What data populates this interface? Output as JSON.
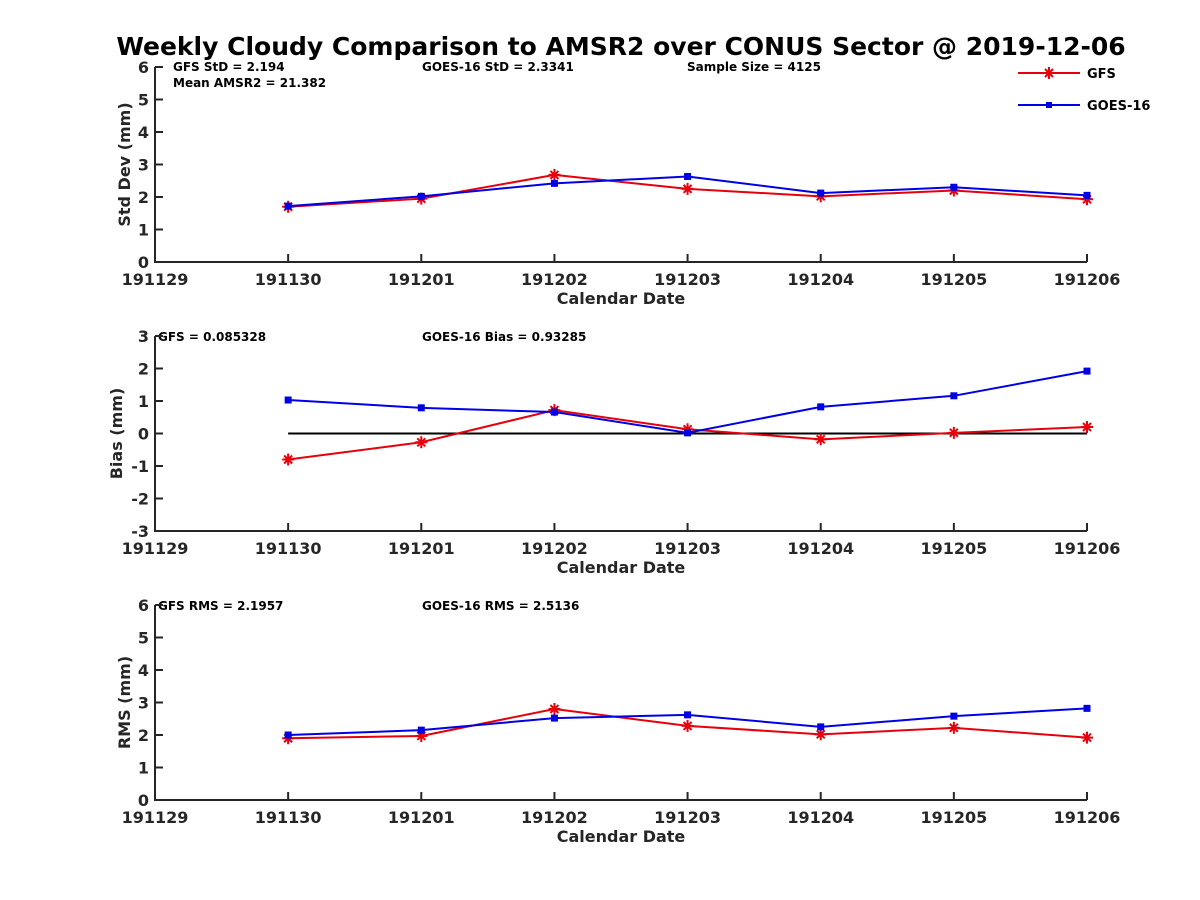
{
  "title": "Weekly Cloudy Comparison to AMSR2 over CONUS Sector @ 2019-12-06",
  "legend": [
    {
      "name": "GFS",
      "color": "#e6000b",
      "marker": "asterisk"
    },
    {
      "name": "GOES-16",
      "color": "#0000e6",
      "marker": "square"
    }
  ],
  "chart_data": [
    {
      "type": "line",
      "xlabel": "Calendar Date",
      "ylabel": "Std Dev (mm)",
      "x_ticks": [
        "191129",
        "191130",
        "191201",
        "191202",
        "191203",
        "191204",
        "191205",
        "191206"
      ],
      "y_ticks": [
        "0",
        "1",
        "2",
        "3",
        "4",
        "5",
        "6"
      ],
      "ylim": [
        0,
        6
      ],
      "xlim": [
        "191129",
        "191206"
      ],
      "annotations": [
        "GFS StD = 2.194",
        "GOES-16 StD = 2.3341",
        "Sample Size = 4125",
        "Mean AMSR2 = 21.382"
      ],
      "x": [
        "191130",
        "191201",
        "191202",
        "191203",
        "191204",
        "191205",
        "191206"
      ],
      "series": [
        {
          "name": "GFS",
          "values": [
            1.7,
            1.95,
            2.68,
            2.25,
            2.02,
            2.2,
            1.93
          ]
        },
        {
          "name": "GOES-16",
          "values": [
            1.72,
            2.02,
            2.42,
            2.63,
            2.12,
            2.3,
            2.05
          ]
        }
      ],
      "zero_line": false,
      "legend": "top-right"
    },
    {
      "type": "line",
      "xlabel": "Calendar Date",
      "ylabel": "Bias (mm)",
      "x_ticks": [
        "191129",
        "191130",
        "191201",
        "191202",
        "191203",
        "191204",
        "191205",
        "191206"
      ],
      "y_ticks": [
        "-3",
        "-2",
        "-1",
        "0",
        "1",
        "2",
        "3"
      ],
      "ylim": [
        -3,
        3
      ],
      "xlim": [
        "191129",
        "191206"
      ],
      "annotations": [
        "GFS = 0.085328",
        "GOES-16 Bias  = 0.93285"
      ],
      "x": [
        "191130",
        "191201",
        "191202",
        "191203",
        "191204",
        "191205",
        "191206"
      ],
      "series": [
        {
          "name": "GFS",
          "values": [
            -0.8,
            -0.27,
            0.72,
            0.13,
            -0.18,
            0.02,
            0.2
          ]
        },
        {
          "name": "GOES-16",
          "values": [
            1.03,
            0.79,
            0.66,
            0.02,
            0.82,
            1.16,
            1.92
          ]
        }
      ],
      "zero_line": true
    },
    {
      "type": "line",
      "xlabel": "Calendar Date",
      "ylabel": "RMS (mm)",
      "x_ticks": [
        "191129",
        "191130",
        "191201",
        "191202",
        "191203",
        "191204",
        "191205",
        "191206"
      ],
      "y_ticks": [
        "0",
        "1",
        "2",
        "3",
        "4",
        "5",
        "6"
      ],
      "ylim": [
        0,
        6
      ],
      "xlim": [
        "191129",
        "191206"
      ],
      "annotations": [
        "GFS RMS = 2.1957",
        "GOES-16 RMS = 2.5136"
      ],
      "x": [
        "191130",
        "191201",
        "191202",
        "191203",
        "191204",
        "191205",
        "191206"
      ],
      "series": [
        {
          "name": "GFS",
          "values": [
            1.9,
            1.97,
            2.8,
            2.28,
            2.02,
            2.22,
            1.92
          ]
        },
        {
          "name": "GOES-16",
          "values": [
            2.0,
            2.15,
            2.52,
            2.62,
            2.25,
            2.58,
            2.82
          ]
        }
      ],
      "zero_line": false
    }
  ]
}
